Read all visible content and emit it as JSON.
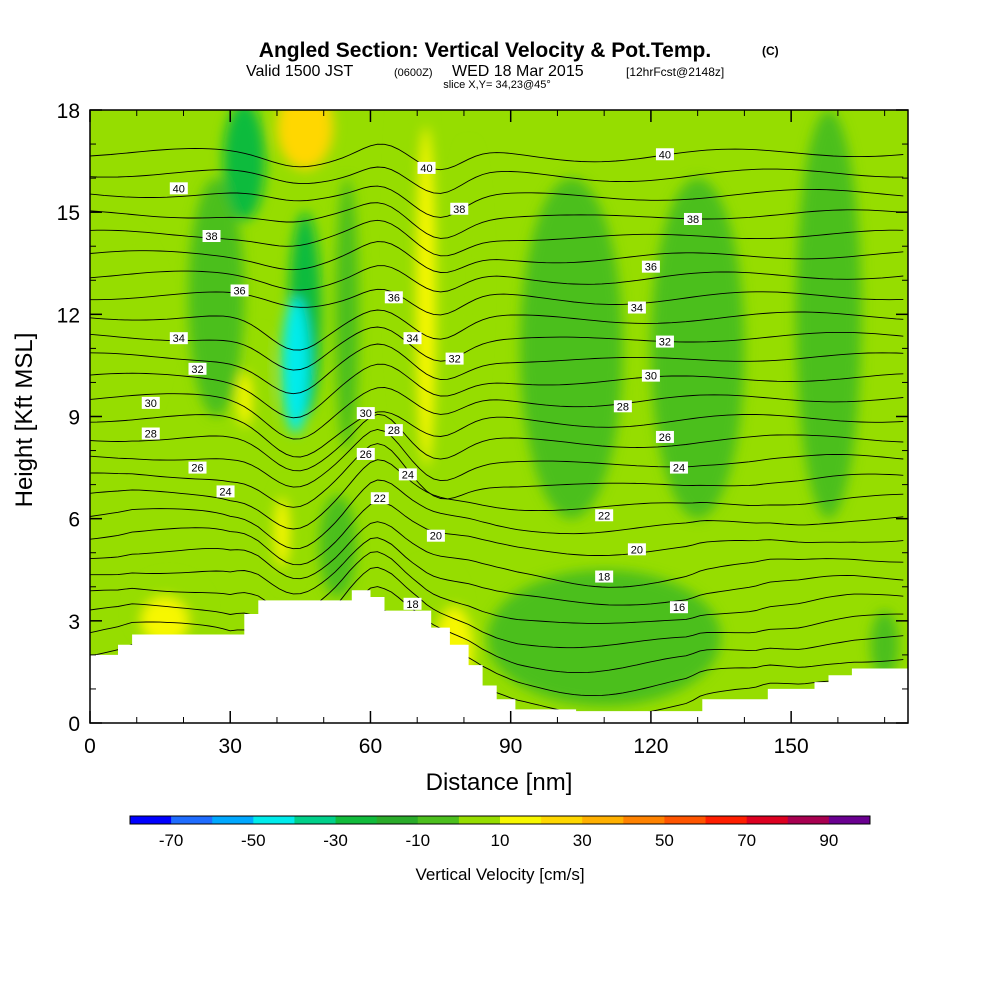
{
  "chart_data": {
    "type": "heatmap",
    "title": "Angled Section: Vertical Velocity & Pot.Temp.",
    "title_unit": "(C)",
    "subtitle": "Valid 1500 JST",
    "subtitle_zulu": "(0600Z)",
    "subtitle_date": "WED 18 Mar 2015",
    "subtitle_fcst": "[12hrFcst@2148z]",
    "slice_label": "slice X,Y= 34,23@45°",
    "xlabel": "Distance [nm]",
    "ylabel": "Height [Kft MSL]",
    "xlim": [
      0,
      175
    ],
    "ylim": [
      0,
      18
    ],
    "x_ticks": [
      0,
      30,
      60,
      90,
      120,
      150
    ],
    "x_tick_labels": [
      "0",
      "30",
      "60",
      "90",
      "120",
      "150"
    ],
    "y_ticks": [
      0,
      3,
      6,
      9,
      12,
      15,
      18
    ],
    "y_tick_labels": [
      "0",
      "3",
      "6",
      "9",
      "12",
      "15",
      "18"
    ],
    "colorbar": {
      "label": "Vertical Velocity [cm/s]",
      "bounds": [
        -80,
        -70,
        -60,
        -50,
        -40,
        -30,
        -20,
        -10,
        0,
        10,
        20,
        30,
        40,
        50,
        60,
        70,
        80,
        90,
        100
      ],
      "tick_values": [
        -70,
        -50,
        -30,
        -10,
        10,
        30,
        50,
        70,
        90
      ],
      "tick_labels": [
        "-70",
        "-50",
        "-30",
        "-10",
        "10",
        "30",
        "50",
        "70",
        "90"
      ],
      "colors": [
        "#0000ff",
        "#1f6cff",
        "#00a8ff",
        "#00ecec",
        "#00d08a",
        "#11bb3c",
        "#2aab2a",
        "#4cbf1e",
        "#96dd00",
        "#f7f700",
        "#ffd700",
        "#ffb000",
        "#ff8200",
        "#ff5500",
        "#ff1e00",
        "#dd0020",
        "#a80050",
        "#6a0090"
      ]
    },
    "terrain": [
      [
        0,
        2.0
      ],
      [
        6,
        2.3
      ],
      [
        9,
        2.6
      ],
      [
        30,
        2.6
      ],
      [
        33,
        3.2
      ],
      [
        36,
        3.6
      ],
      [
        52,
        3.6
      ],
      [
        56,
        3.9
      ],
      [
        60,
        3.7
      ],
      [
        63,
        3.3
      ],
      [
        70,
        3.3
      ],
      [
        73,
        2.8
      ],
      [
        77,
        2.3
      ],
      [
        81,
        1.7
      ],
      [
        84,
        1.1
      ],
      [
        87,
        0.7
      ],
      [
        91,
        0.4
      ],
      [
        104,
        0.35
      ],
      [
        128,
        0.35
      ],
      [
        131,
        0.7
      ],
      [
        142,
        0.7
      ],
      [
        145,
        1.0
      ],
      [
        152,
        1.0
      ],
      [
        155,
        1.2
      ],
      [
        158,
        1.4
      ],
      [
        163,
        1.6
      ],
      [
        175,
        1.6
      ]
    ],
    "velocity_field": [
      {
        "x": 7,
        "y": 11.5,
        "w": 18,
        "h": 6.0,
        "value": 0
      },
      {
        "x": 27,
        "y": 12.5,
        "w": 12,
        "h": 7.0,
        "value": -10
      },
      {
        "x": 33,
        "y": 16.5,
        "w": 9,
        "h": 3.5,
        "value": -30
      },
      {
        "x": 46,
        "y": 17.5,
        "w": 12,
        "h": 2.5,
        "value": 20
      },
      {
        "x": 46,
        "y": 12.0,
        "w": 7,
        "h": 6.0,
        "value": -30
      },
      {
        "x": 44,
        "y": 10.5,
        "w": 6,
        "h": 4.0,
        "value": -50
      },
      {
        "x": 36,
        "y": 10.0,
        "w": 5,
        "h": 3.0,
        "value": 0
      },
      {
        "x": 33,
        "y": 9.5,
        "w": 3,
        "h": 1.6,
        "value": 10
      },
      {
        "x": 55,
        "y": 12.0,
        "w": 5,
        "h": 8.0,
        "value": -10
      },
      {
        "x": 69,
        "y": 14.0,
        "w": 8,
        "h": 12.0,
        "value": 0
      },
      {
        "x": 72,
        "y": 12.5,
        "w": 4,
        "h": 10.0,
        "value": 10
      },
      {
        "x": 81,
        "y": 13.0,
        "w": 6,
        "h": 8.0,
        "value": 0
      },
      {
        "x": 103,
        "y": 11.0,
        "w": 22,
        "h": 10.0,
        "value": -10
      },
      {
        "x": 130,
        "y": 11.0,
        "w": 20,
        "h": 10.0,
        "value": -10
      },
      {
        "x": 158,
        "y": 12.0,
        "w": 14,
        "h": 12.0,
        "value": -10
      },
      {
        "x": 42,
        "y": 5.5,
        "w": 6,
        "h": 3.0,
        "value": 0
      },
      {
        "x": 41,
        "y": 5.6,
        "w": 3,
        "h": 2.0,
        "value": 10
      },
      {
        "x": 53,
        "y": 5.2,
        "w": 8,
        "h": 3.0,
        "value": -10
      },
      {
        "x": 17,
        "y": 3.3,
        "w": 16,
        "h": 2.0,
        "value": 0
      },
      {
        "x": 16,
        "y": 3.0,
        "w": 10,
        "h": 1.4,
        "value": 10
      },
      {
        "x": 73,
        "y": 3.2,
        "w": 14,
        "h": 3.0,
        "value": 0
      },
      {
        "x": 78,
        "y": 2.2,
        "w": 8,
        "h": 2.4,
        "value": 10
      },
      {
        "x": 110,
        "y": 2.5,
        "w": 50,
        "h": 4.0,
        "value": -10
      },
      {
        "x": 170,
        "y": 2.3,
        "w": 6,
        "h": 2.0,
        "value": -10
      }
    ],
    "potential_temperature_levels": [
      16,
      17,
      18,
      19,
      20,
      21,
      22,
      23,
      24,
      25,
      26,
      27,
      28,
      29,
      30,
      31,
      32,
      33,
      34,
      35,
      36,
      37,
      38,
      39,
      40,
      41,
      42,
      43
    ],
    "contour_labels": [
      {
        "x": 19,
        "y": 15.7,
        "text": "40"
      },
      {
        "x": 26,
        "y": 14.3,
        "text": "38"
      },
      {
        "x": 32,
        "y": 12.7,
        "text": "36"
      },
      {
        "x": 19,
        "y": 11.3,
        "text": "34"
      },
      {
        "x": 23,
        "y": 10.4,
        "text": "32"
      },
      {
        "x": 13,
        "y": 9.4,
        "text": "30"
      },
      {
        "x": 13,
        "y": 8.5,
        "text": "28"
      },
      {
        "x": 23,
        "y": 7.5,
        "text": "26"
      },
      {
        "x": 29,
        "y": 6.8,
        "text": "24"
      },
      {
        "x": 72,
        "y": 16.3,
        "text": "40"
      },
      {
        "x": 79,
        "y": 15.1,
        "text": "38"
      },
      {
        "x": 65,
        "y": 12.5,
        "text": "36"
      },
      {
        "x": 69,
        "y": 11.3,
        "text": "34"
      },
      {
        "x": 78,
        "y": 10.7,
        "text": "32"
      },
      {
        "x": 59,
        "y": 9.1,
        "text": "30"
      },
      {
        "x": 65,
        "y": 8.6,
        "text": "28"
      },
      {
        "x": 59,
        "y": 7.9,
        "text": "26"
      },
      {
        "x": 68,
        "y": 7.3,
        "text": "24"
      },
      {
        "x": 62,
        "y": 6.6,
        "text": "22"
      },
      {
        "x": 74,
        "y": 5.5,
        "text": "20"
      },
      {
        "x": 69,
        "y": 3.5,
        "text": "18"
      },
      {
        "x": 123,
        "y": 16.7,
        "text": "40"
      },
      {
        "x": 129,
        "y": 14.8,
        "text": "38"
      },
      {
        "x": 120,
        "y": 13.4,
        "text": "36"
      },
      {
        "x": 117,
        "y": 12.2,
        "text": "34"
      },
      {
        "x": 123,
        "y": 11.2,
        "text": "32"
      },
      {
        "x": 120,
        "y": 10.2,
        "text": "30"
      },
      {
        "x": 114,
        "y": 9.3,
        "text": "28"
      },
      {
        "x": 123,
        "y": 8.4,
        "text": "26"
      },
      {
        "x": 126,
        "y": 7.5,
        "text": "24"
      },
      {
        "x": 110,
        "y": 6.1,
        "text": "22"
      },
      {
        "x": 117,
        "y": 5.1,
        "text": "20"
      },
      {
        "x": 110,
        "y": 4.3,
        "text": "18"
      },
      {
        "x": 126,
        "y": 3.4,
        "text": "16"
      }
    ]
  }
}
